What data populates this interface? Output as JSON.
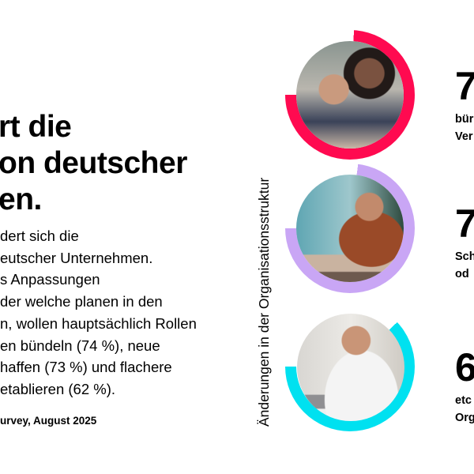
{
  "headline": [
    "rt die",
    "on deutscher",
    "en."
  ],
  "body": [
    "dert sich die",
    "eutscher Unternehmen.",
    "s Anpassungen",
    "der welche planen in den",
    "n, wollen hauptsächlich Rollen",
    "en bündeln (74 %), neue",
    "haffen (73 %) und flachere",
    "etablieren (62 %)."
  ],
  "source": "urvey, August 2025",
  "vertical_label": "Änderungen in der Organisationsstruktur",
  "stats": [
    {
      "number": "7",
      "lines": [
        "bür",
        "Ver"
      ],
      "percent": 74,
      "color": "#ff0a50"
    },
    {
      "number": "7",
      "lines": [
        "Sch",
        "od"
      ],
      "percent": 73,
      "color": "#c9a6f5"
    },
    {
      "number": "6",
      "lines": [
        "etc",
        "Org"
      ],
      "percent": 62,
      "color": "#00e1f0"
    }
  ]
}
